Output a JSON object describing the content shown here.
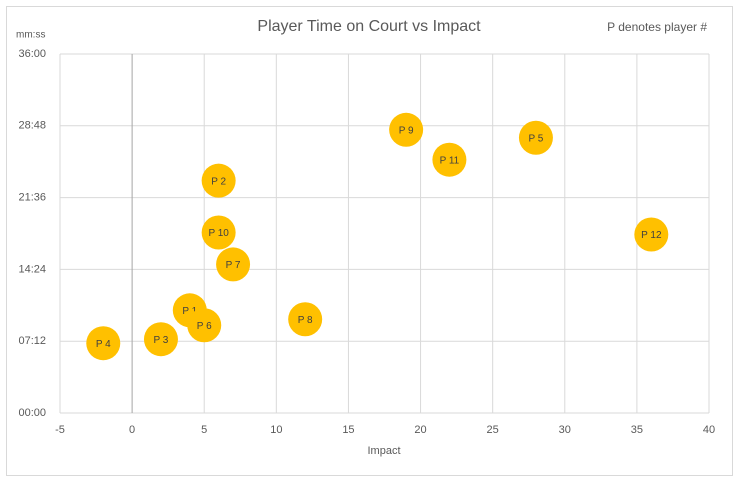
{
  "chart_data": {
    "type": "scatter",
    "title": "Player Time on Court vs Impact",
    "annotation": "P denotes player #",
    "x_label": "Impact",
    "y_label": "mm:ss",
    "x": [
      4,
      6,
      2,
      -2,
      28,
      5,
      7,
      12,
      19,
      6,
      22,
      36
    ],
    "values": [
      10.3,
      23.3,
      7.4,
      7.0,
      27.6,
      8.8,
      14.9,
      9.4,
      28.4,
      18.1,
      25.4,
      17.9
    ],
    "labels": [
      "P 1",
      "P 2",
      "P 3",
      "P 4",
      "P 5",
      "P 6",
      "P 7",
      "P 8",
      "P 9",
      "P 10",
      "P 11",
      "P 12"
    ],
    "color": "#ffc000",
    "xlim": [
      -5,
      40
    ],
    "xticks": [
      -5,
      0,
      5,
      10,
      15,
      20,
      25,
      30,
      35,
      40
    ],
    "ylim": [
      0,
      36
    ],
    "yticks": [
      {
        "value": 0,
        "label": "00:00"
      },
      {
        "value": 7.2,
        "label": "07:12"
      },
      {
        "value": 14.4,
        "label": "14:24"
      },
      {
        "value": 21.6,
        "label": "21:36"
      },
      {
        "value": 28.8,
        "label": "28:48"
      },
      {
        "value": 36,
        "label": "36:00"
      }
    ],
    "grid": true
  }
}
